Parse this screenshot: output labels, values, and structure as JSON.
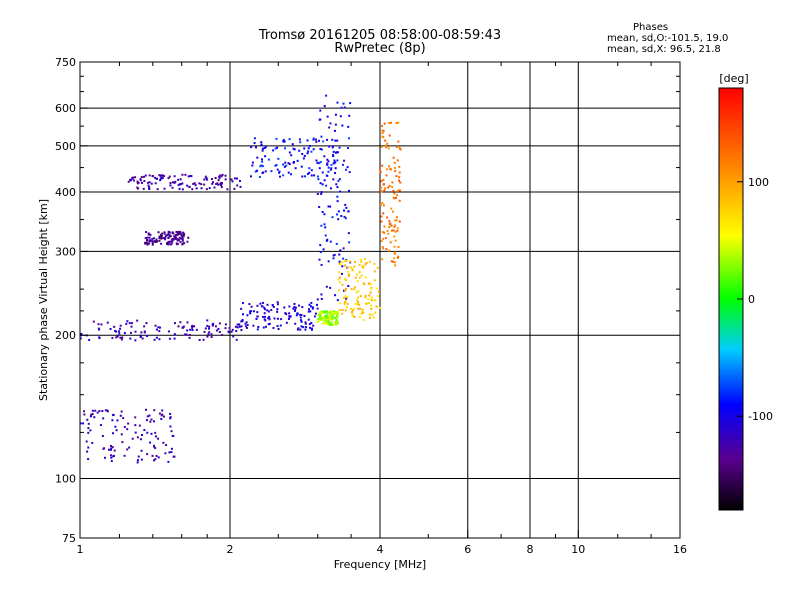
{
  "chart_data": {
    "type": "scatter",
    "title": "Tromsø 20161205 08:58:00-08:59:43",
    "subtitle": "RwPretec (8p)",
    "xlabel": "Frequency [MHz]",
    "ylabel": "Stationary phase Virtual Height [km]",
    "x_scale": "log",
    "y_scale": "log",
    "xlim": [
      1,
      16
    ],
    "ylim": [
      75,
      750
    ],
    "x_ticks": [
      "1",
      "2",
      "4",
      "6",
      "8",
      "10",
      "16"
    ],
    "x_tick_values": [
      1,
      2,
      4,
      6,
      8,
      10,
      16
    ],
    "y_ticks": [
      "750",
      "600",
      "500",
      "400",
      "300",
      "200",
      "100",
      "75"
    ],
    "y_tick_values": [
      750,
      600,
      500,
      400,
      300,
      200,
      100,
      75
    ],
    "grid": true,
    "colorbar": {
      "label": "[deg]",
      "range": [
        -180,
        180
      ],
      "ticks": [
        "100",
        "0",
        "-100"
      ],
      "tick_values": [
        100,
        0,
        -100
      ]
    },
    "stats": {
      "heading": "Phases",
      "o_line": "mean, sd,O:-101.5, 19.0",
      "x_line": "mean, sd,X:  96.5, 21.8"
    },
    "series": [
      {
        "freq_range": [
          1.0,
          2.1
        ],
        "height_range": [
          195,
          215
        ],
        "phase": -120
      },
      {
        "freq_range": [
          2.1,
          3.0
        ],
        "height_range": [
          205,
          235
        ],
        "phase": -105
      },
      {
        "freq_range": [
          3.0,
          3.5
        ],
        "height_range": [
          235,
          640
        ],
        "phase": -95
      },
      {
        "freq_range": [
          1.25,
          2.1
        ],
        "height_range": [
          405,
          435
        ],
        "phase": -125
      },
      {
        "freq_range": [
          2.2,
          3.3
        ],
        "height_range": [
          430,
          520
        ],
        "phase": -90
      },
      {
        "freq_range": [
          1.35,
          1.65
        ],
        "height_range": [
          310,
          330
        ],
        "phase": -135
      },
      {
        "freq_range": [
          1.0,
          1.55
        ],
        "height_range": [
          108,
          140
        ],
        "phase": -120
      },
      {
        "freq_range": [
          3.0,
          3.3
        ],
        "height_range": [
          210,
          225
        ],
        "phase": 35
      },
      {
        "freq_range": [
          3.3,
          4.0
        ],
        "height_range": [
          215,
          290
        ],
        "phase": 80
      },
      {
        "freq_range": [
          4.0,
          4.4
        ],
        "height_range": [
          280,
          560
        ],
        "phase": 120
      }
    ]
  }
}
